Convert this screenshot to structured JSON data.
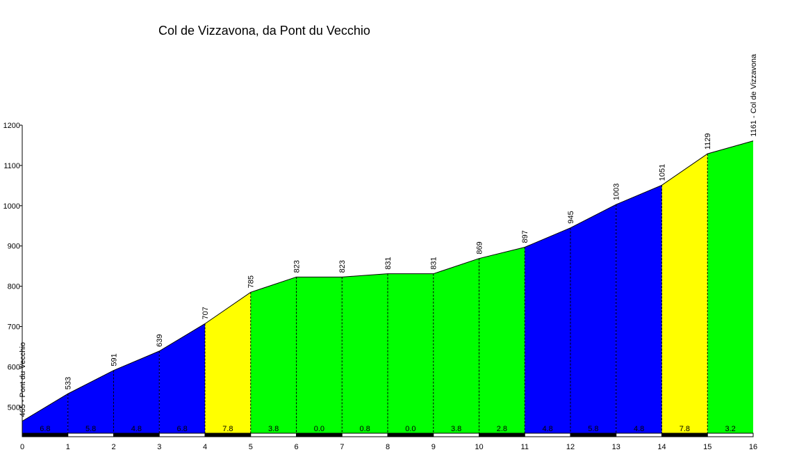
{
  "chart_data": {
    "type": "area",
    "title": "Col de Vizzavona, da Pont du Vecchio",
    "xlabel": "",
    "ylabel": "",
    "x": [
      0,
      1,
      2,
      3,
      4,
      5,
      6,
      7,
      8,
      9,
      10,
      11,
      12,
      13,
      14,
      15,
      16
    ],
    "elevation": [
      465,
      533,
      591,
      639,
      707,
      785,
      823,
      823,
      831,
      831,
      869,
      897,
      945,
      1003,
      1051,
      1129,
      1161
    ],
    "point_labels": [
      "465 - Pont du Vecchio",
      "533",
      "591",
      "639",
      "707",
      "785",
      "823",
      "823",
      "831",
      "831",
      "869",
      "897",
      "945",
      "1003",
      "1051",
      "1129",
      "1161 - Col de Vizzavona"
    ],
    "segment_gradients": [
      "6.8",
      "5.8",
      "4.8",
      "6.8",
      "7.8",
      "3.8",
      "0.0",
      "0.8",
      "0.0",
      "3.8",
      "2.8",
      "4.8",
      "5.8",
      "4.8",
      "7.8",
      "3.2"
    ],
    "segment_colors": [
      "#0000ff",
      "#0000ff",
      "#0000ff",
      "#0000ff",
      "#ffff00",
      "#00ff00",
      "#00ff00",
      "#00ff00",
      "#00ff00",
      "#00ff00",
      "#00ff00",
      "#0000ff",
      "#0000ff",
      "#0000ff",
      "#ffff00",
      "#00ff00"
    ],
    "y_ticks": [
      500,
      600,
      700,
      800,
      900,
      1000,
      1100,
      1200
    ],
    "x_ticks": [
      "0",
      "1",
      "2",
      "3",
      "4",
      "5",
      "6",
      "7",
      "8",
      "9",
      "10",
      "11",
      "12",
      "13",
      "14",
      "15",
      "16"
    ],
    "ylim": [
      435,
      1200
    ],
    "xlim": [
      0,
      16
    ],
    "grid": false
  }
}
